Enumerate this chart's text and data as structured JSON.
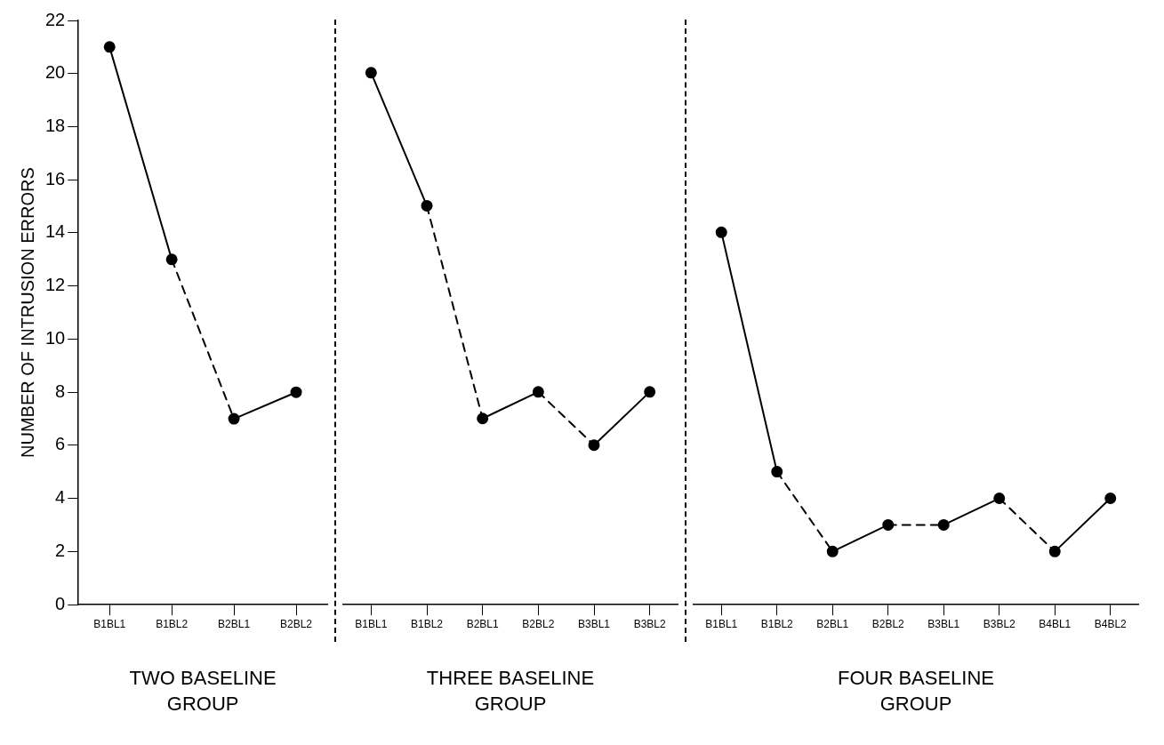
{
  "chart_data": [
    {
      "type": "line",
      "ylabel": "NUMBER OF INTRUSION ERRORS",
      "xlabel": "TWO BASELINE\nGROUP",
      "categories": [
        "B1BL1",
        "B1BL2",
        "B2BL1",
        "B2BL2"
      ],
      "ylim": [
        0,
        22
      ],
      "yticks": [
        0,
        2,
        4,
        6,
        8,
        10,
        12,
        14,
        16,
        18,
        20,
        22
      ],
      "series": [
        {
          "type": "scatter",
          "marker": "circle",
          "color": "#000000",
          "values": [
            21,
            13,
            7,
            8
          ]
        },
        {
          "line_style": "solid",
          "marker": "none",
          "color": "#000000",
          "values": [
            21,
            13,
            null,
            null
          ]
        },
        {
          "line_style": "dashed",
          "marker": "none",
          "color": "#000000",
          "values": [
            null,
            13,
            7,
            null
          ]
        },
        {
          "line_style": "solid",
          "marker": "none",
          "color": "#000000",
          "values": [
            null,
            null,
            7,
            8
          ]
        }
      ]
    },
    {
      "type": "line",
      "xlabel": "THREE BASELINE\nGROUP",
      "tick_labels": "x",
      "categories": [
        "B1BL1",
        "B1BL2",
        "B2BL1",
        "B2BL2",
        "B3BL1",
        "B3BL2"
      ],
      "ylim": [
        0,
        22
      ],
      "series": [
        {
          "type": "scatter",
          "marker": "circle",
          "color": "#000000",
          "values": [
            20,
            15,
            7,
            8,
            6,
            8
          ]
        },
        {
          "line_style": "solid",
          "marker": "none",
          "color": "#000000",
          "values": [
            20,
            15,
            null,
            null,
            null,
            null
          ]
        },
        {
          "line_style": "dashed",
          "marker": "none",
          "color": "#000000",
          "values": [
            null,
            15,
            7,
            null,
            null,
            null
          ]
        },
        {
          "line_style": "solid",
          "marker": "none",
          "color": "#000000",
          "values": [
            null,
            null,
            7,
            8,
            null,
            null
          ]
        },
        {
          "line_style": "dashed",
          "marker": "none",
          "color": "#000000",
          "values": [
            null,
            null,
            null,
            8,
            6,
            null
          ]
        },
        {
          "line_style": "solid",
          "marker": "none",
          "color": "#000000",
          "values": [
            null,
            null,
            null,
            null,
            6,
            8
          ]
        }
      ]
    },
    {
      "type": "line",
      "xlabel": "FOUR BASELINE\nGROUP",
      "tick_labels": "x",
      "categories": [
        "B1BL1",
        "B1BL2",
        "B2BL1",
        "B2BL2",
        "B3BL1",
        "B3BL2",
        "B4BL1",
        "B4BL2"
      ],
      "ylim": [
        0,
        22
      ],
      "series": [
        {
          "type": "scatter",
          "marker": "circle",
          "color": "#000000",
          "values": [
            14,
            5,
            2,
            3,
            3,
            4,
            2,
            4
          ]
        },
        {
          "line_style": "solid",
          "marker": "none",
          "color": "#000000",
          "values": [
            14,
            5,
            null,
            null,
            null,
            null,
            null,
            null
          ]
        },
        {
          "line_style": "dashed",
          "marker": "none",
          "color": "#000000",
          "values": [
            null,
            5,
            2,
            null,
            null,
            null,
            null,
            null
          ]
        },
        {
          "line_style": "solid",
          "marker": "none",
          "color": "#000000",
          "values": [
            null,
            null,
            2,
            3,
            null,
            null,
            null,
            null
          ]
        },
        {
          "line_style": "dashed",
          "marker": "none",
          "color": "#000000",
          "values": [
            null,
            null,
            null,
            3,
            3,
            null,
            null,
            null
          ]
        },
        {
          "line_style": "solid",
          "marker": "none",
          "color": "#000000",
          "values": [
            null,
            null,
            null,
            null,
            3,
            4,
            null,
            null
          ]
        },
        {
          "line_style": "dashed",
          "marker": "none",
          "color": "#000000",
          "values": [
            null,
            null,
            null,
            null,
            null,
            4,
            2,
            null
          ]
        },
        {
          "line_style": "solid",
          "marker": "none",
          "color": "#000000",
          "values": [
            null,
            null,
            null,
            null,
            null,
            null,
            2,
            4
          ]
        }
      ]
    }
  ]
}
